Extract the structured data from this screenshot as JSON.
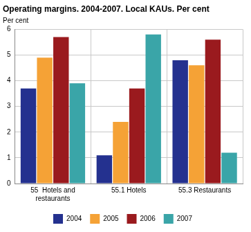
{
  "chart_data": {
    "type": "bar",
    "title": "Operating margins. 2004-2007. Local KAUs. Per cent",
    "ylabel": "Per cent",
    "categories": [
      "55  Hotels and restaurants",
      "55.1 Hotels",
      "55.3 Restaurants"
    ],
    "series": [
      {
        "name": "2004",
        "color": "#24318f",
        "values": [
          3.7,
          1.1,
          4.8
        ]
      },
      {
        "name": "2005",
        "color": "#f5a236",
        "values": [
          4.9,
          2.4,
          4.6
        ]
      },
      {
        "name": "2006",
        "color": "#9a1a1e",
        "values": [
          5.7,
          3.7,
          5.6
        ]
      },
      {
        "name": "2007",
        "color": "#3aa5a8",
        "values": [
          3.9,
          5.8,
          1.2
        ]
      }
    ],
    "ylim": [
      0,
      6
    ],
    "yticks": [
      0,
      1,
      2,
      3,
      4,
      5,
      6
    ],
    "grid": true,
    "legend": "bottom"
  }
}
